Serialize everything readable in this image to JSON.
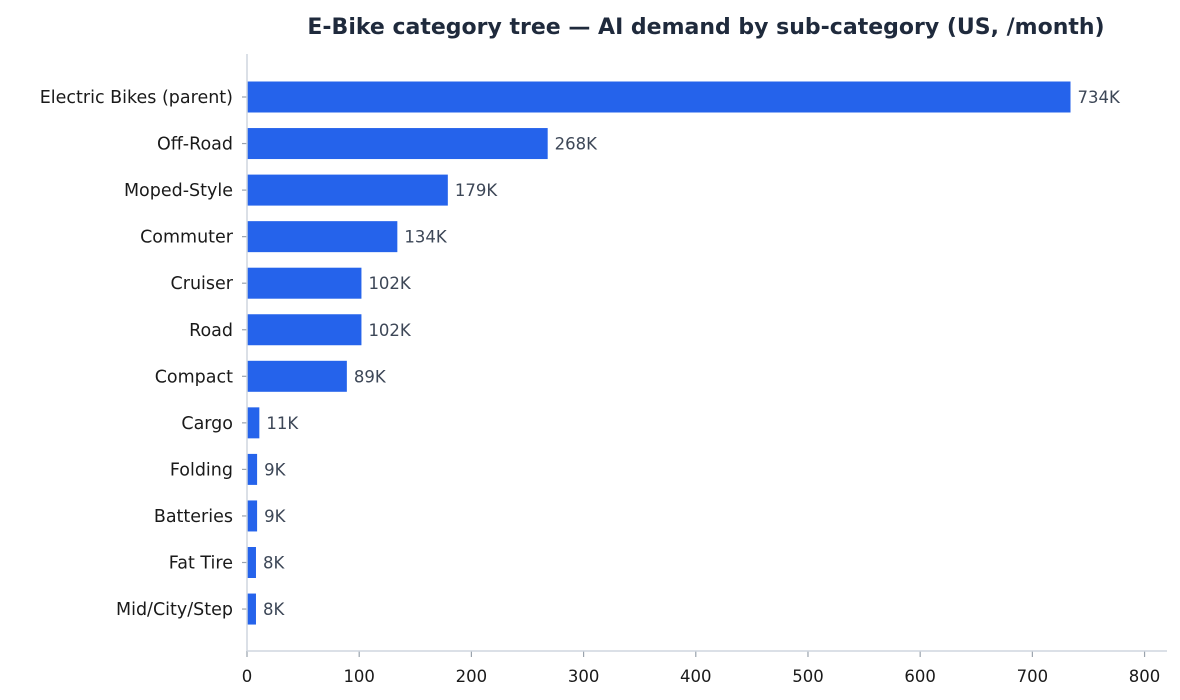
{
  "chart_data": {
    "type": "bar",
    "orientation": "horizontal",
    "title": "E-Bike category tree — AI demand by sub-category (US, /month)",
    "xlabel": "",
    "ylabel": "",
    "categories": [
      "Electric Bikes (parent)",
      "Off-Road",
      "Moped-Style",
      "Commuter",
      "Cruiser",
      "Road",
      "Compact",
      "Cargo",
      "Folding",
      "Batteries",
      "Fat Tire",
      "Mid/City/Step"
    ],
    "values": [
      734,
      268,
      179,
      134,
      102,
      102,
      89,
      11,
      9,
      9,
      8,
      8
    ],
    "value_labels": [
      "734K",
      "268K",
      "179K",
      "134K",
      "102K",
      "102K",
      "89K",
      "11K",
      "9K",
      "9K",
      "8K",
      "8K"
    ],
    "xlim": [
      0,
      820
    ],
    "xticks": [
      0,
      100,
      200,
      300,
      400,
      500,
      600,
      700,
      800
    ],
    "grid": false,
    "colors": {
      "bar": "#2563eb"
    }
  }
}
